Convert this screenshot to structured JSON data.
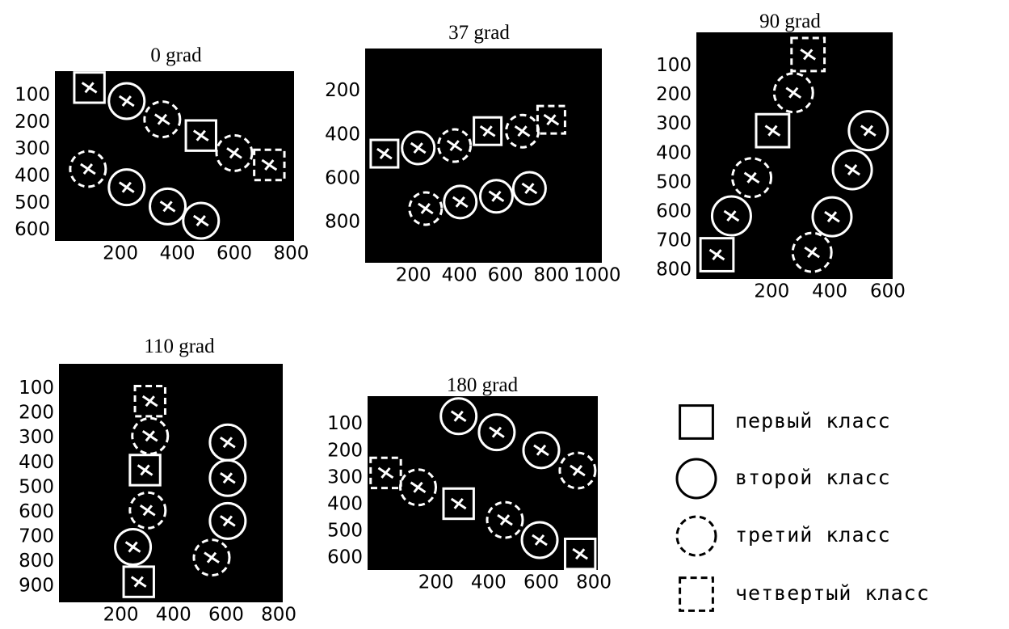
{
  "panels": [
    {
      "title": "0 grad",
      "xlim": [
        -30,
        810
      ],
      "ylim": [
        640,
        10
      ],
      "xticks": [
        200,
        400,
        600,
        800
      ],
      "yticks": [
        100,
        200,
        300,
        400,
        500,
        600
      ],
      "objects": [
        {
          "x": 91,
          "y": 71,
          "class": 0
        },
        {
          "x": 222,
          "y": 121,
          "class": 1
        },
        {
          "x": 347,
          "y": 189,
          "class": 2
        },
        {
          "x": 483,
          "y": 249,
          "class": 0
        },
        {
          "x": 600,
          "y": 314,
          "class": 2
        },
        {
          "x": 723,
          "y": 358,
          "class": 3
        },
        {
          "x": 86,
          "y": 373,
          "class": 2
        },
        {
          "x": 222,
          "y": 441,
          "class": 1
        },
        {
          "x": 366,
          "y": 512,
          "class": 1
        },
        {
          "x": 483,
          "y": 565,
          "class": 1
        }
      ]
    },
    {
      "title": "37 grad",
      "xlim": [
        -10,
        1020
      ],
      "ylim": [
        985,
        5
      ],
      "xticks": [
        200,
        400,
        600,
        800,
        1000
      ],
      "yticks": [
        200,
        400,
        600,
        800
      ],
      "objects": [
        {
          "x": 74,
          "y": 486,
          "class": 0
        },
        {
          "x": 221,
          "y": 460,
          "class": 1
        },
        {
          "x": 379,
          "y": 449,
          "class": 2
        },
        {
          "x": 523,
          "y": 383,
          "class": 0
        },
        {
          "x": 674,
          "y": 383,
          "class": 2
        },
        {
          "x": 800,
          "y": 331,
          "class": 3
        },
        {
          "x": 253,
          "y": 737,
          "class": 2
        },
        {
          "x": 404,
          "y": 707,
          "class": 1
        },
        {
          "x": 561,
          "y": 681,
          "class": 1
        },
        {
          "x": 705,
          "y": 645,
          "class": 1
        }
      ]
    },
    {
      "title": "90 grad",
      "xlim": [
        -60,
        617
      ],
      "ylim": [
        830,
        -15
      ],
      "xticks": [
        200,
        400,
        600
      ],
      "yticks": [
        100,
        200,
        300,
        400,
        500,
        600,
        700,
        800
      ],
      "objects": [
        {
          "x": 325,
          "y": 61,
          "class": 3
        },
        {
          "x": 275,
          "y": 192,
          "class": 2
        },
        {
          "x": 203,
          "y": 322,
          "class": 0
        },
        {
          "x": 131,
          "y": 483,
          "class": 2
        },
        {
          "x": 61,
          "y": 614,
          "class": 1
        },
        {
          "x": 11,
          "y": 747,
          "class": 0
        },
        {
          "x": 533,
          "y": 322,
          "class": 1
        },
        {
          "x": 478,
          "y": 456,
          "class": 1
        },
        {
          "x": 408,
          "y": 617,
          "class": 1
        },
        {
          "x": 339,
          "y": 739,
          "class": 2
        }
      ]
    },
    {
      "title": "110 grad",
      "xlim": [
        -35,
        815
      ],
      "ylim": [
        965,
        0
      ],
      "xticks": [
        200,
        400,
        600,
        800
      ],
      "yticks": [
        100,
        200,
        300,
        400,
        500,
        600,
        700,
        800,
        900
      ],
      "objects": [
        {
          "x": 311,
          "y": 151,
          "class": 3
        },
        {
          "x": 311,
          "y": 292,
          "class": 2
        },
        {
          "x": 292,
          "y": 430,
          "class": 0
        },
        {
          "x": 302,
          "y": 593,
          "class": 2
        },
        {
          "x": 246,
          "y": 741,
          "class": 1
        },
        {
          "x": 268,
          "y": 882,
          "class": 0
        },
        {
          "x": 606,
          "y": 318,
          "class": 1
        },
        {
          "x": 606,
          "y": 462,
          "class": 1
        },
        {
          "x": 606,
          "y": 636,
          "class": 1
        },
        {
          "x": 545,
          "y": 784,
          "class": 2
        }
      ]
    },
    {
      "title": "180 grad",
      "xlim": [
        -60,
        815
      ],
      "ylim": [
        645,
        -5
      ],
      "xticks": [
        200,
        400,
        600,
        800
      ],
      "yticks": [
        100,
        200,
        300,
        400,
        500,
        600
      ],
      "objects": [
        {
          "x": 286,
          "y": 70,
          "class": 1
        },
        {
          "x": 431,
          "y": 130,
          "class": 1
        },
        {
          "x": 600,
          "y": 197,
          "class": 1
        },
        {
          "x": 738,
          "y": 273,
          "class": 2
        },
        {
          "x": 9,
          "y": 282,
          "class": 3
        },
        {
          "x": 132,
          "y": 336,
          "class": 2
        },
        {
          "x": 286,
          "y": 397,
          "class": 0
        },
        {
          "x": 462,
          "y": 458,
          "class": 2
        },
        {
          "x": 594,
          "y": 533,
          "class": 1
        },
        {
          "x": 748,
          "y": 585,
          "class": 0
        }
      ]
    }
  ],
  "legend": [
    "первый класс",
    "второй класс",
    "третий класс",
    "четвертый класс"
  ]
}
